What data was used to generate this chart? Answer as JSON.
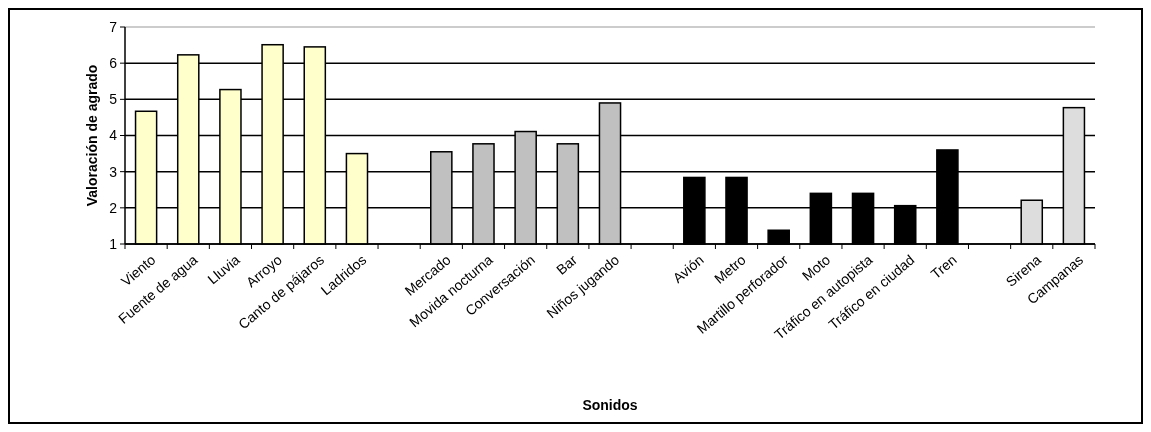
{
  "chart_data": {
    "type": "bar",
    "xlabel": "Sonidos",
    "ylabel": "Valoración de agrado",
    "categories": [
      "Viento",
      "Fuente de agua",
      "Lluvia",
      "Arroyo",
      "Canto de pájaros",
      "Ladridos",
      null,
      "Mercado",
      "Movida nocturna",
      "Conversación",
      "Bar",
      "Niños jugando",
      null,
      "Avión",
      "Metro",
      "Martillo perforador",
      "Moto",
      "Tráfico en autopista",
      "Tráfico en ciudad",
      "Tren",
      null,
      "Sirena",
      "Campanas"
    ],
    "values": [
      4.67,
      6.23,
      5.27,
      6.51,
      6.45,
      3.5,
      null,
      3.55,
      3.77,
      4.11,
      3.77,
      4.9,
      null,
      2.84,
      2.84,
      1.38,
      2.4,
      2.4,
      2.06,
      3.6,
      null,
      2.21,
      4.77
    ],
    "colors": [
      "#ffffcc",
      "#ffffcc",
      "#ffffcc",
      "#ffffcc",
      "#ffffcc",
      "#ffffcc",
      null,
      "#c0c0c0",
      "#c0c0c0",
      "#c0c0c0",
      "#c0c0c0",
      "#c0c0c0",
      null,
      "#000000",
      "#000000",
      "#000000",
      "#000000",
      "#000000",
      "#000000",
      "#000000",
      null,
      "#dddddd",
      "#dddddd"
    ],
    "ylim": [
      1,
      7
    ],
    "yticks": [
      1,
      2,
      3,
      4,
      5,
      6,
      7
    ],
    "grid": "y"
  }
}
